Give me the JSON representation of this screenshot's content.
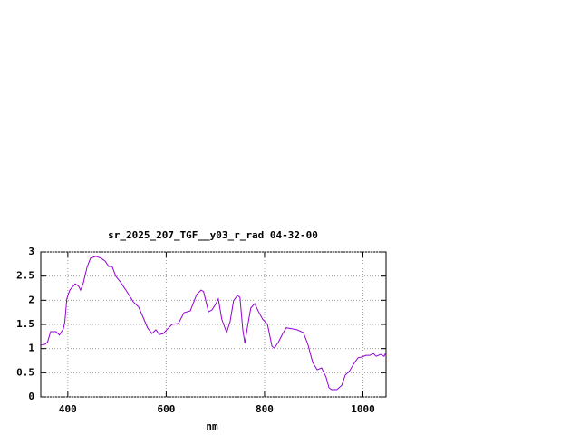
{
  "chart_data": {
    "type": "line",
    "title": "sr_2025_207_TGF__y03_r_rad 04-32-00",
    "xlabel": "nm",
    "x": [
      345,
      354,
      359,
      365,
      376,
      383,
      391,
      394,
      398,
      404,
      415,
      422,
      426,
      431,
      439,
      446,
      457,
      468,
      476,
      483,
      490,
      498,
      507,
      520,
      533,
      544,
      553,
      562,
      571,
      579,
      586,
      594,
      603,
      612,
      625,
      636,
      649,
      662,
      671,
      676,
      686,
      693,
      700,
      706,
      713,
      723,
      730,
      737,
      745,
      750,
      756,
      760,
      765,
      772,
      780,
      787,
      796,
      806,
      815,
      820,
      828,
      837,
      844,
      855,
      866,
      879,
      888,
      898,
      907,
      916,
      925,
      931,
      936,
      947,
      957,
      964,
      973,
      981,
      990,
      999,
      1006,
      1014,
      1021,
      1027,
      1036,
      1043,
      1047
    ],
    "series": [
      {
        "color": "#9400d3",
        "values": [
          1.07,
          1.09,
          1.14,
          1.35,
          1.35,
          1.28,
          1.41,
          1.56,
          2.03,
          2.21,
          2.34,
          2.29,
          2.21,
          2.34,
          2.68,
          2.87,
          2.91,
          2.87,
          2.81,
          2.7,
          2.7,
          2.49,
          2.38,
          2.18,
          1.97,
          1.86,
          1.65,
          1.43,
          1.31,
          1.39,
          1.29,
          1.31,
          1.41,
          1.5,
          1.52,
          1.74,
          1.78,
          2.12,
          2.21,
          2.18,
          1.76,
          1.8,
          1.91,
          2.03,
          1.61,
          1.33,
          1.56,
          1.99,
          2.1,
          2.06,
          1.37,
          1.11,
          1.43,
          1.84,
          1.93,
          1.78,
          1.61,
          1.5,
          1.05,
          1.01,
          1.13,
          1.31,
          1.43,
          1.41,
          1.39,
          1.33,
          1.09,
          0.71,
          0.56,
          0.6,
          0.41,
          0.19,
          0.15,
          0.15,
          0.24,
          0.45,
          0.54,
          0.68,
          0.81,
          0.83,
          0.86,
          0.86,
          0.9,
          0.84,
          0.88,
          0.84,
          0.92
        ]
      }
    ],
    "xlim": [
      345,
      1047
    ],
    "ylim": [
      0,
      3
    ],
    "xticks": [
      400,
      600,
      800,
      1000
    ],
    "yticks": [
      0,
      0.5,
      1,
      1.5,
      2,
      2.5,
      3
    ],
    "grid": true
  }
}
